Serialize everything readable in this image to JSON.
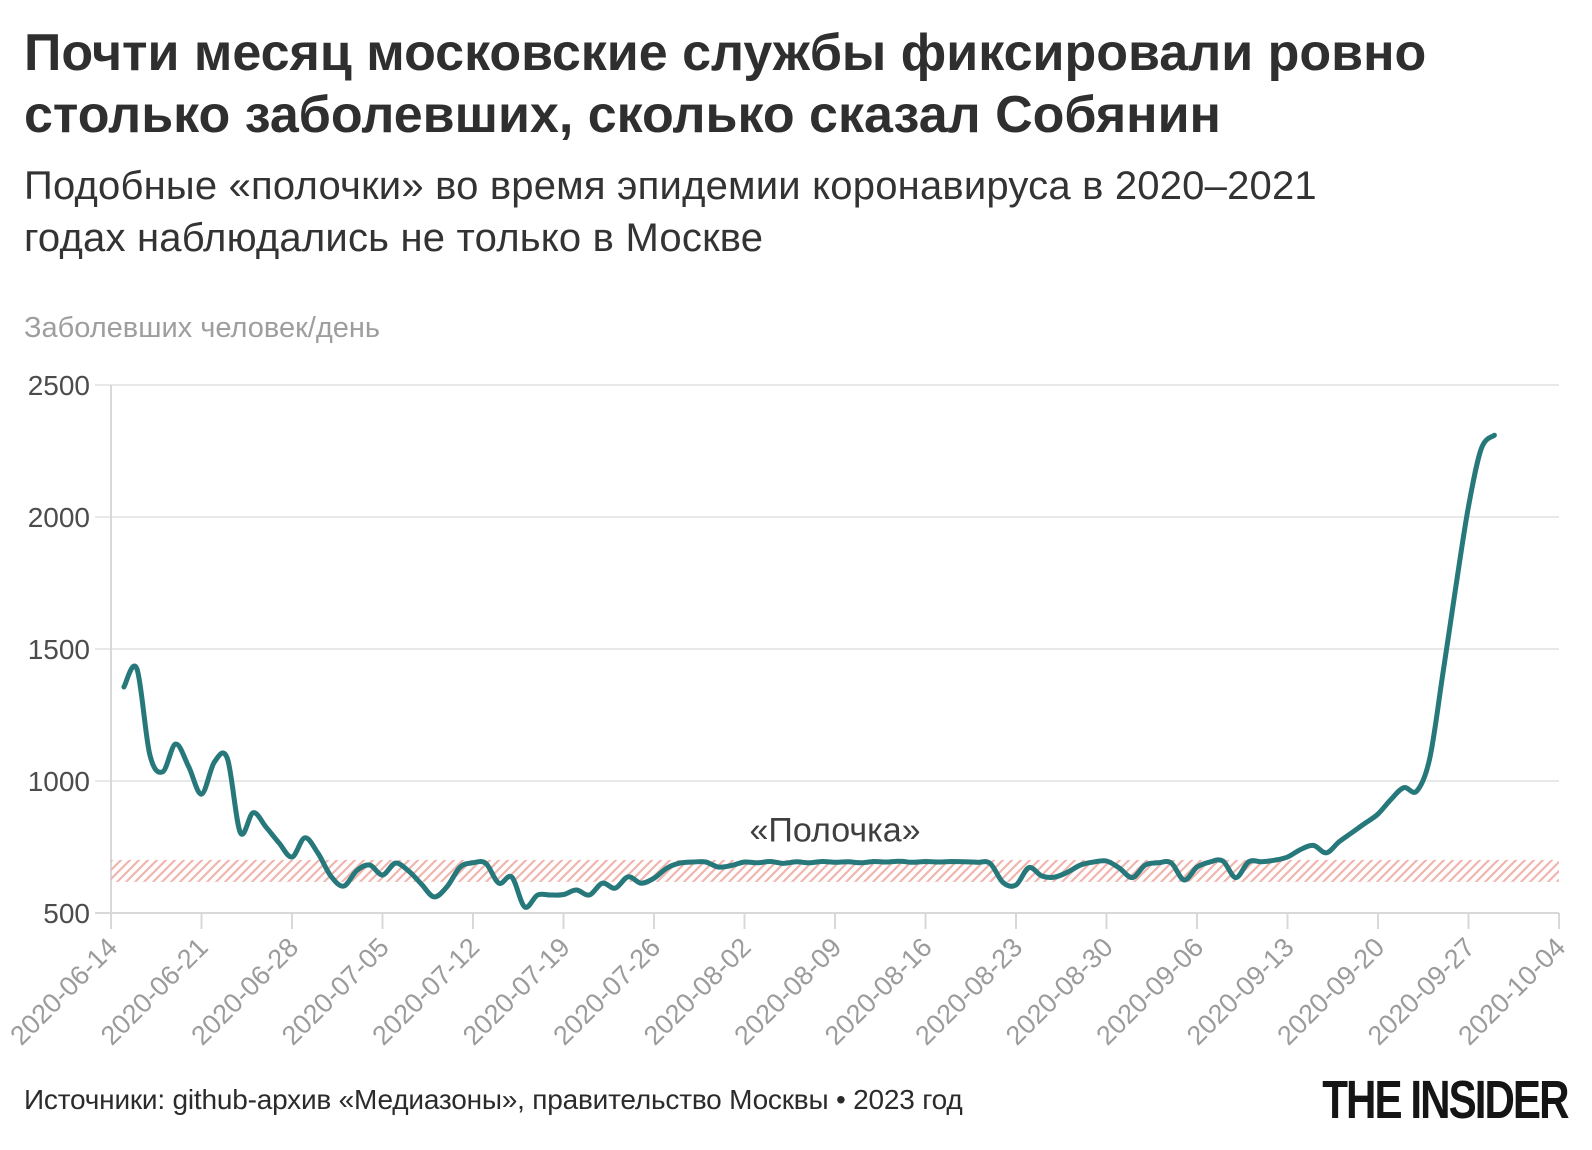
{
  "header": {
    "title_lines": [
      "Почти месяц московские службы фиксировали ровно",
      "столько заболевших, сколько сказал Собянин"
    ],
    "subtitle_lines": [
      "Подобные «полочки» во время эпидемии коронавируса в 2020–2021",
      "годах наблюдались не только в Москве"
    ]
  },
  "footer": {
    "sources": "Источники: github-архив «Медиазоны», правительство Москвы • 2023 год",
    "logo": "THE INSIDER"
  },
  "colors": {
    "line": "#26787a",
    "band_stripe": "#f0b5ad",
    "grid": "#e8e8e8",
    "axis": "#d8d8d8",
    "x_tick_label": "#9b9b9b",
    "y_tick_label": "#4c4c4c",
    "annotation": "#3f3f3f"
  },
  "chart_data": {
    "type": "line",
    "title": "",
    "xlabel": "",
    "ylabel": "Заболевших человек/день",
    "ylim": [
      500,
      2500
    ],
    "y_ticks": [
      500,
      1000,
      1500,
      2000,
      2500
    ],
    "xlim": [
      "2020-06-14",
      "2020-10-04"
    ],
    "x_ticks": [
      "2020-06-14",
      "2020-06-21",
      "2020-06-28",
      "2020-07-05",
      "2020-07-12",
      "2020-07-19",
      "2020-07-26",
      "2020-08-02",
      "2020-08-09",
      "2020-08-16",
      "2020-08-23",
      "2020-08-30",
      "2020-09-06",
      "2020-09-13",
      "2020-09-20",
      "2020-09-27",
      "2020-10-04"
    ],
    "grid": "horizontal",
    "legend": "none",
    "annotation": {
      "text": "«Полочка»",
      "x": "2020-08-09",
      "y": 770
    },
    "band": {
      "label": "полочка-диапазон",
      "range": [
        618,
        701
      ],
      "style": "diagonal-hatch"
    },
    "series": [
      {
        "name": "Заболевших человек/день",
        "dates": [
          "2020-06-15",
          "2020-06-16",
          "2020-06-17",
          "2020-06-18",
          "2020-06-19",
          "2020-06-20",
          "2020-06-21",
          "2020-06-22",
          "2020-06-23",
          "2020-06-24",
          "2020-06-25",
          "2020-06-26",
          "2020-06-27",
          "2020-06-28",
          "2020-06-29",
          "2020-06-30",
          "2020-07-01",
          "2020-07-02",
          "2020-07-03",
          "2020-07-04",
          "2020-07-05",
          "2020-07-06",
          "2020-07-07",
          "2020-07-08",
          "2020-07-09",
          "2020-07-10",
          "2020-07-11",
          "2020-07-12",
          "2020-07-13",
          "2020-07-14",
          "2020-07-15",
          "2020-07-16",
          "2020-07-17",
          "2020-07-18",
          "2020-07-19",
          "2020-07-20",
          "2020-07-21",
          "2020-07-22",
          "2020-07-23",
          "2020-07-24",
          "2020-07-25",
          "2020-07-26",
          "2020-07-27",
          "2020-07-28",
          "2020-07-29",
          "2020-07-30",
          "2020-07-31",
          "2020-08-01",
          "2020-08-02",
          "2020-08-03",
          "2020-08-04",
          "2020-08-05",
          "2020-08-06",
          "2020-08-07",
          "2020-08-08",
          "2020-08-09",
          "2020-08-10",
          "2020-08-11",
          "2020-08-12",
          "2020-08-13",
          "2020-08-14",
          "2020-08-15",
          "2020-08-16",
          "2020-08-17",
          "2020-08-18",
          "2020-08-19",
          "2020-08-20",
          "2020-08-21",
          "2020-08-22",
          "2020-08-23",
          "2020-08-24",
          "2020-08-25",
          "2020-08-26",
          "2020-08-27",
          "2020-08-28",
          "2020-08-29",
          "2020-08-30",
          "2020-08-31",
          "2020-09-01",
          "2020-09-02",
          "2020-09-03",
          "2020-09-04",
          "2020-09-05",
          "2020-09-06",
          "2020-09-07",
          "2020-09-08",
          "2020-09-09",
          "2020-09-10",
          "2020-09-11",
          "2020-09-12",
          "2020-09-13",
          "2020-09-14",
          "2020-09-15",
          "2020-09-16",
          "2020-09-17",
          "2020-09-18",
          "2020-09-19",
          "2020-09-20",
          "2020-09-21",
          "2020-09-22",
          "2020-09-23",
          "2020-09-24",
          "2020-09-25",
          "2020-09-26",
          "2020-09-27",
          "2020-09-28",
          "2020-09-29"
        ],
        "values": [
          1356,
          1425,
          1100,
          1035,
          1140,
          1055,
          950,
          1072,
          1085,
          805,
          880,
          825,
          765,
          712,
          785,
          727,
          640,
          602,
          660,
          682,
          644,
          689,
          660,
          610,
          561,
          600,
          674,
          690,
          688,
          613,
          636,
          523,
          568,
          568,
          570,
          587,
          568,
          613,
          594,
          637,
          613,
          632,
          670,
          689,
          693,
          693,
          674,
          680,
          693,
          690,
          695,
          688,
          694,
          690,
          695,
          692,
          694,
          690,
          695,
          693,
          696,
          692,
          695,
          693,
          695,
          694,
          692,
          688,
          615,
          606,
          672,
          640,
          636,
          655,
          682,
          693,
          697,
          670,
          634,
          682,
          690,
          690,
          625,
          674,
          693,
          697,
          634,
          694,
          694,
          700,
          712,
          740,
          756,
          728,
          770,
          805,
          840,
          875,
          930,
          975,
          962,
          1085,
          1400,
          1730,
          2040,
          2260,
          2310
        ]
      }
    ]
  }
}
